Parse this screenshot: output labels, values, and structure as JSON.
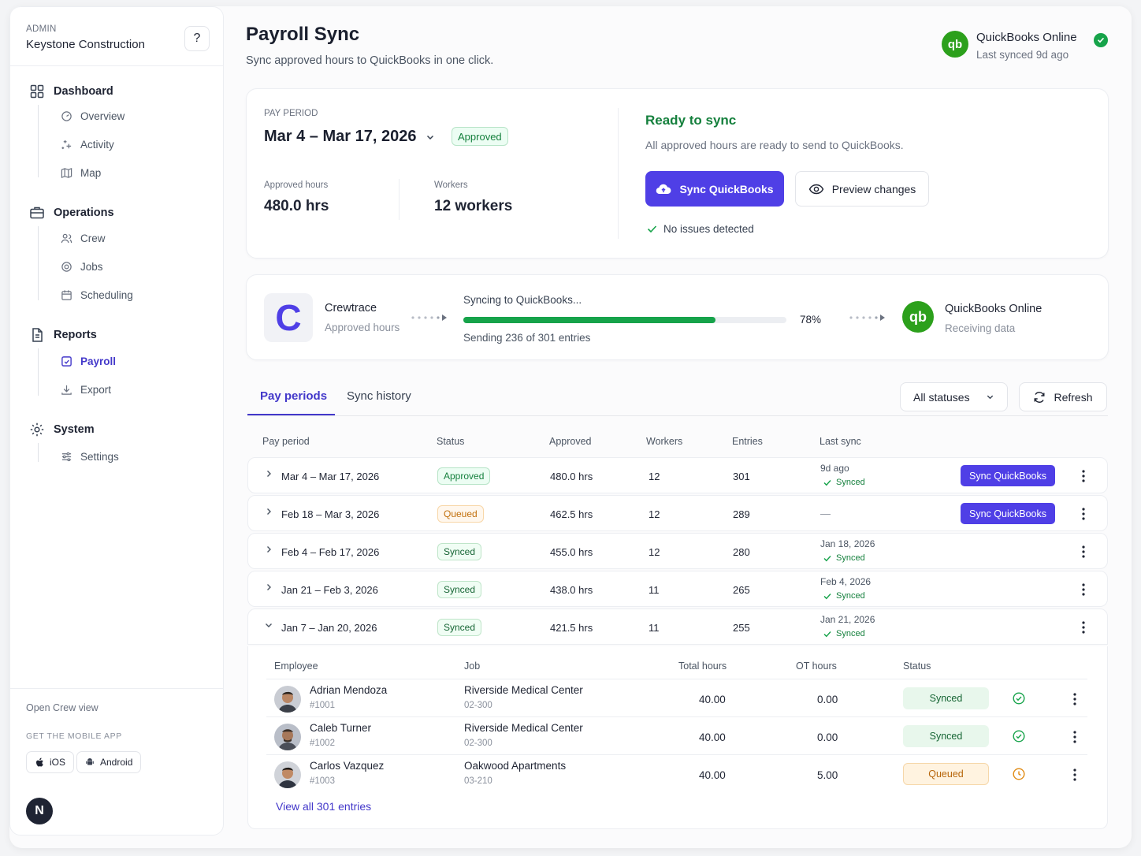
{
  "sidebar": {
    "role": "ADMIN",
    "org": "Keystone Construction",
    "help": "?",
    "sections": [
      {
        "label": "Dashboard",
        "items": [
          "Overview",
          "Activity",
          "Map"
        ]
      },
      {
        "label": "Operations",
        "items": [
          "Crew",
          "Jobs",
          "Scheduling"
        ]
      },
      {
        "label": "Reports",
        "items": [
          "Payroll",
          "Export"
        ],
        "active_item": "Payroll"
      },
      {
        "label": "System",
        "items": [
          "Settings"
        ]
      }
    ],
    "open_crew_view": "Open Crew view",
    "mobile_app_heading": "GET THE MOBILE APP",
    "ios_label": "iOS",
    "android_label": "Android",
    "user_initial": "N"
  },
  "header": {
    "title": "Payroll Sync",
    "subtitle": "Sync approved hours to QuickBooks in one click.",
    "integration_name": "QuickBooks Online",
    "integration_status": "Last synced 9d ago"
  },
  "period_card": {
    "label": "PAY PERIOD",
    "period": "Mar 4 – Mar 17, 2026",
    "status": "Approved",
    "approved_hours_label": "Approved hours",
    "approved_hours": "480.0 hrs",
    "workers_label": "Workers",
    "workers": "12 workers",
    "ready_title": "Ready to sync",
    "ready_desc": "All approved hours are ready to send to QuickBooks.",
    "sync_button": "Sync QuickBooks",
    "preview_button": "Preview changes",
    "issues": "No issues detected"
  },
  "progress_card": {
    "source_name": "Crewtrace",
    "source_desc": "Approved hours",
    "source_logo": "C",
    "title": "Syncing to QuickBooks...",
    "progress": 0.78,
    "percent": "78%",
    "detail": "Sending 236 of 301 entries",
    "dest_name": "QuickBooks Online",
    "dest_desc": "Receiving data",
    "dest_logo": "qb"
  },
  "tabs": [
    "Pay periods",
    "Sync history"
  ],
  "filter": "All statuses",
  "refresh": "Refresh",
  "table": {
    "headers": [
      "Pay period",
      "Status",
      "Approved",
      "Workers",
      "Entries",
      "Last sync"
    ],
    "rows": [
      {
        "period": "Mar 4 – Mar 17, 2026",
        "status": "Approved",
        "approved": "480.0 hrs",
        "workers": "12",
        "entries": "301",
        "last_sync": "9d ago",
        "sync_state": "Synced",
        "action": "Sync QuickBooks"
      },
      {
        "period": "Feb 18 – Mar 3, 2026",
        "status": "Queued",
        "approved": "462.5 hrs",
        "workers": "12",
        "entries": "289",
        "last_sync": "—",
        "sync_state": "",
        "action": "Sync QuickBooks"
      },
      {
        "period": "Feb 4 – Feb 17, 2026",
        "status": "Synced",
        "approved": "455.0 hrs",
        "workers": "12",
        "entries": "280",
        "last_sync": "Jan 18, 2026",
        "sync_state": "Synced",
        "action": ""
      },
      {
        "period": "Jan 21 – Feb 3, 2026",
        "status": "Synced",
        "approved": "438.0 hrs",
        "workers": "11",
        "entries": "265",
        "last_sync": "Feb 4, 2026",
        "sync_state": "Synced",
        "action": ""
      },
      {
        "period": "Jan 7 – Jan 20, 2026",
        "status": "Synced",
        "approved": "421.5 hrs",
        "workers": "11",
        "entries": "255",
        "last_sync": "Jan 21, 2026",
        "sync_state": "Synced",
        "action": ""
      }
    ]
  },
  "expanded": {
    "headers": [
      "Employee",
      "Job",
      "Total hours",
      "OT hours",
      "Status"
    ],
    "rows": [
      {
        "name": "Adrian Mendoza",
        "id": "#1001",
        "job": "Riverside Medical Center",
        "job_code": "02-300",
        "total": "40.00",
        "ot": "0.00",
        "status": "Synced"
      },
      {
        "name": "Caleb Turner",
        "id": "#1002",
        "job": "Riverside Medical Center",
        "job_code": "02-300",
        "total": "40.00",
        "ot": "0.00",
        "status": "Synced"
      },
      {
        "name": "Carlos Vazquez",
        "id": "#1003",
        "job": "Oakwood Apartments",
        "job_code": "03-210",
        "total": "40.00",
        "ot": "5.00",
        "status": "Queued"
      }
    ],
    "view_all": "View all 301 entries"
  },
  "colors": {
    "accent": "#4f3fe6",
    "success": "#16a34a",
    "quickbooks": "#2ca01c",
    "warning": "#d97706"
  }
}
